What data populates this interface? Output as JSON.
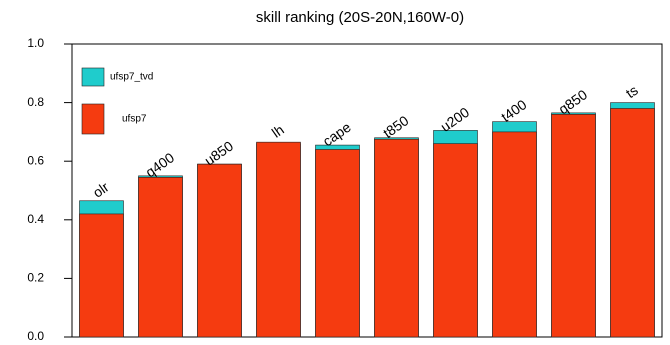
{
  "chart_data": {
    "type": "bar",
    "title": "skill ranking (20S-20N,160W-0)",
    "categories": [
      "olr",
      "q400",
      "u850",
      "lh",
      "cape",
      "t850",
      "u200",
      "t400",
      "q850",
      "ts"
    ],
    "series": [
      {
        "name": "ufsp7_tvd",
        "color": "#1fcccc",
        "values": [
          0.465,
          0.55,
          0.59,
          0.66,
          0.655,
          0.68,
          0.705,
          0.735,
          0.765,
          0.8
        ]
      },
      {
        "name": "ufsp7",
        "color": "#f53b10",
        "values": [
          0.42,
          0.545,
          0.59,
          0.665,
          0.64,
          0.675,
          0.66,
          0.7,
          0.76,
          0.78
        ]
      }
    ],
    "ylim": [
      0,
      1
    ],
    "yticks": [
      {
        "value": 0,
        "label": "0.0"
      },
      0.2,
      0.4,
      0.6,
      0.8,
      {
        "value": 1,
        "label": "1.0"
      }
    ],
    "legend": "upper left"
  }
}
